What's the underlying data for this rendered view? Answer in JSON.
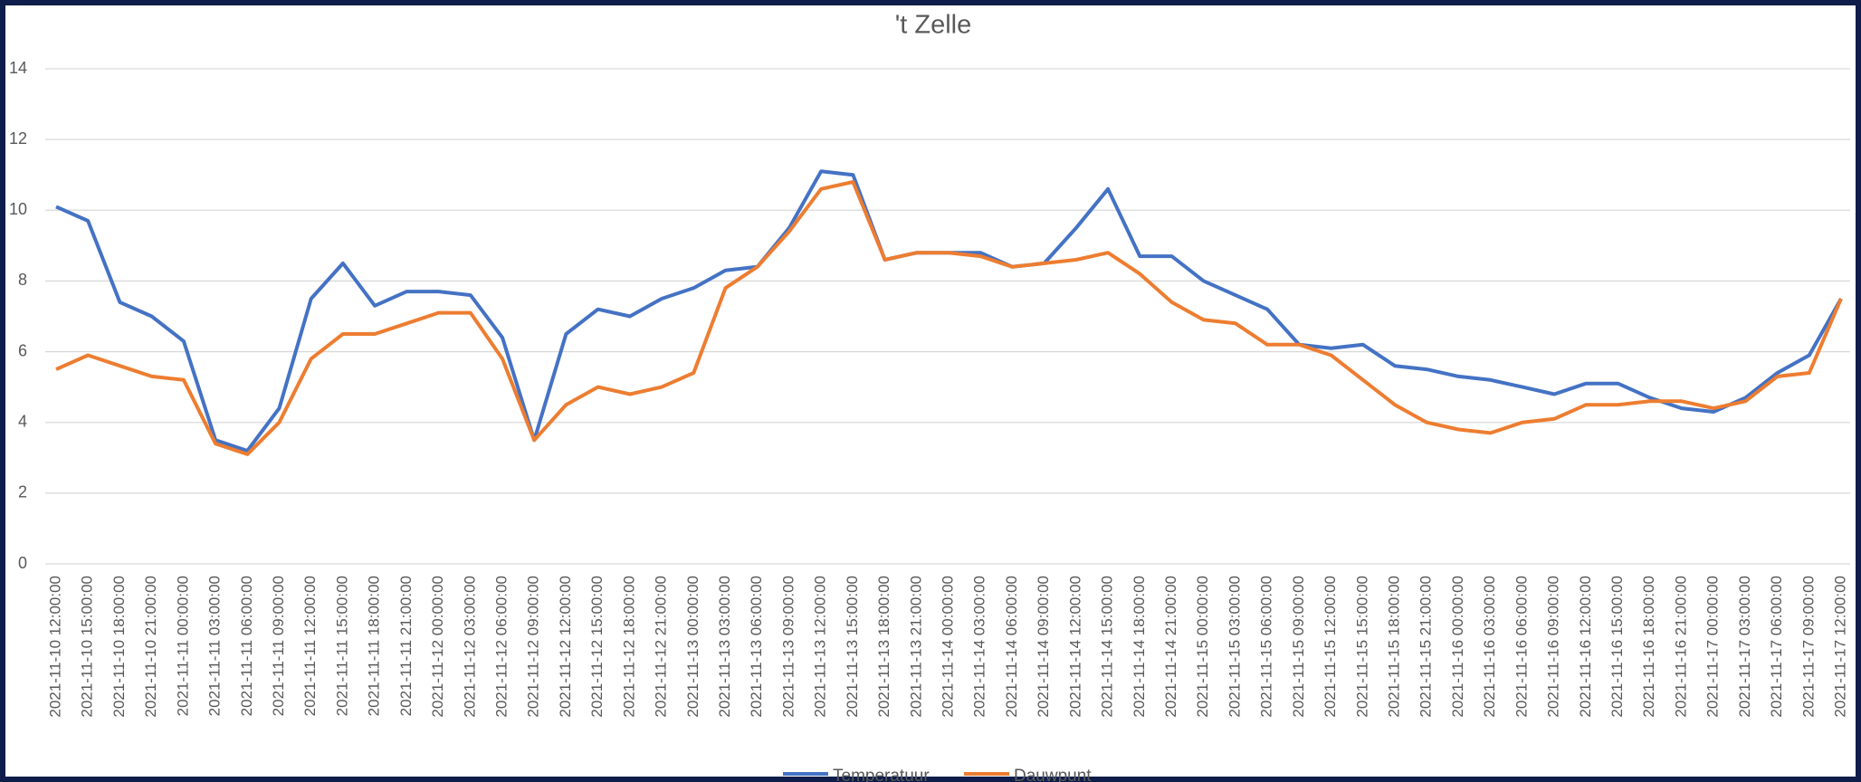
{
  "chart_data": {
    "type": "line",
    "title": "'t Zelle",
    "categories": [
      "2021-11-10 12:00:00",
      "2021-11-10 15:00:00",
      "2021-11-10 18:00:00",
      "2021-11-10 21:00:00",
      "2021-11-11 00:00:00",
      "2021-11-11 03:00:00",
      "2021-11-11 06:00:00",
      "2021-11-11 09:00:00",
      "2021-11-11 12:00:00",
      "2021-11-11 15:00:00",
      "2021-11-11 18:00:00",
      "2021-11-11 21:00:00",
      "2021-11-12 00:00:00",
      "2021-11-12 03:00:00",
      "2021-11-12 06:00:00",
      "2021-11-12 09:00:00",
      "2021-11-12 12:00:00",
      "2021-11-12 15:00:00",
      "2021-11-12 18:00:00",
      "2021-11-12 21:00:00",
      "2021-11-13 00:00:00",
      "2021-11-13 03:00:00",
      "2021-11-13 06:00:00",
      "2021-11-13 09:00:00",
      "2021-11-13 12:00:00",
      "2021-11-13 15:00:00",
      "2021-11-13 18:00:00",
      "2021-11-13 21:00:00",
      "2021-11-14 00:00:00",
      "2021-11-14 03:00:00",
      "2021-11-14 06:00:00",
      "2021-11-14 09:00:00",
      "2021-11-14 12:00:00",
      "2021-11-14 15:00:00",
      "2021-11-14 18:00:00",
      "2021-11-14 21:00:00",
      "2021-11-15 00:00:00",
      "2021-11-15 03:00:00",
      "2021-11-15 06:00:00",
      "2021-11-15 09:00:00",
      "2021-11-15 12:00:00",
      "2021-11-15 15:00:00",
      "2021-11-15 18:00:00",
      "2021-11-15 21:00:00",
      "2021-11-16 00:00:00",
      "2021-11-16 03:00:00",
      "2021-11-16 06:00:00",
      "2021-11-16 09:00:00",
      "2021-11-16 12:00:00",
      "2021-11-16 15:00:00",
      "2021-11-16 18:00:00",
      "2021-11-16 21:00:00",
      "2021-11-17 00:00:00",
      "2021-11-17 03:00:00",
      "2021-11-17 06:00:00",
      "2021-11-17 09:00:00",
      "2021-11-17 12:00:00"
    ],
    "series": [
      {
        "name": "Temperatuur",
        "color": "#4472c4",
        "values": [
          10.1,
          9.7,
          7.4,
          7.0,
          6.3,
          3.5,
          3.2,
          4.4,
          7.5,
          8.5,
          7.3,
          7.7,
          7.7,
          7.6,
          6.4,
          3.5,
          6.5,
          7.2,
          7.0,
          7.5,
          7.8,
          8.3,
          8.4,
          9.5,
          11.1,
          11.0,
          8.6,
          8.8,
          8.8,
          8.8,
          8.4,
          8.5,
          9.5,
          10.6,
          8.7,
          8.7,
          8.0,
          7.6,
          7.2,
          6.2,
          6.1,
          6.2,
          5.6,
          5.5,
          5.3,
          5.2,
          5.0,
          4.8,
          5.1,
          5.1,
          4.7,
          4.4,
          4.3,
          4.7,
          5.4,
          5.9,
          7.5
        ]
      },
      {
        "name": "Dauwpunt",
        "color": "#ed7d31",
        "values": [
          5.5,
          5.9,
          5.6,
          5.3,
          5.2,
          3.4,
          3.1,
          4.0,
          5.8,
          6.5,
          6.5,
          6.8,
          7.1,
          7.1,
          5.8,
          3.5,
          4.5,
          5.0,
          4.8,
          5.0,
          5.4,
          7.8,
          8.4,
          9.4,
          10.6,
          10.8,
          8.6,
          8.8,
          8.8,
          8.7,
          8.4,
          8.5,
          8.6,
          8.8,
          8.2,
          7.4,
          6.9,
          6.8,
          6.2,
          6.2,
          5.9,
          5.2,
          4.5,
          4.0,
          3.8,
          3.7,
          4.0,
          4.1,
          4.5,
          4.5,
          4.6,
          4.6,
          4.4,
          4.6,
          5.3,
          5.4,
          7.5
        ]
      }
    ],
    "ylim": [
      0,
      14
    ],
    "yticks": [
      0,
      2,
      4,
      6,
      8,
      10,
      12,
      14
    ],
    "grid": true,
    "legend": "bottom"
  }
}
